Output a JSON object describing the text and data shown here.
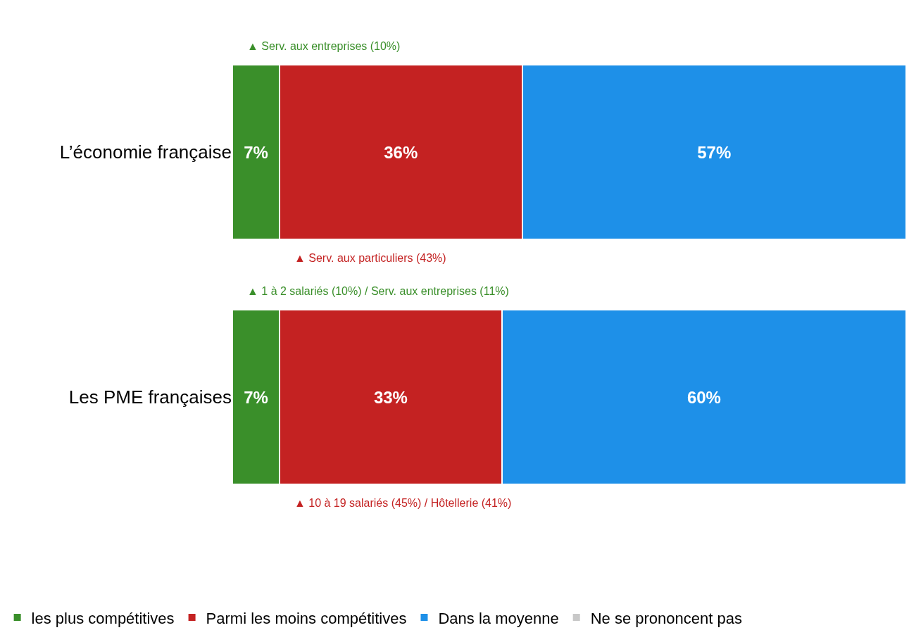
{
  "chart_data": {
    "type": "bar",
    "orientation": "horizontal",
    "stacked": true,
    "categories": [
      "L’économie française",
      "Les PME françaises"
    ],
    "series": [
      {
        "name": "les plus compétitives",
        "color": "#3a8f2a",
        "values": [
          7,
          7
        ],
        "value_labels": [
          "7%",
          "7%"
        ]
      },
      {
        "name": "Parmi les moins compétitives",
        "color": "#c42222",
        "values": [
          36,
          33
        ],
        "value_labels": [
          "36%",
          "33%"
        ]
      },
      {
        "name": "Dans la moyenne",
        "color": "#1e90e8",
        "values": [
          57,
          60
        ],
        "value_labels": [
          "57%",
          "60%"
        ]
      },
      {
        "name": "Ne se prononcent pas",
        "color": "#c8c8c8",
        "values": [
          null,
          null
        ],
        "value_labels": [
          null,
          null
        ]
      }
    ],
    "xlim": [
      0,
      100
    ],
    "tick_labels": "y",
    "legend": "bottom",
    "annotations": [
      "▲ Serv. aux entreprises (10%)",
      "▲ Serv. aux particuliers (43%)",
      "▲ 1 à 2 salariés (10%) / Serv. aux entreprises (11%)",
      "▲ 10 à 19 salariés (45%) / Hôtellerie (41%)"
    ]
  }
}
